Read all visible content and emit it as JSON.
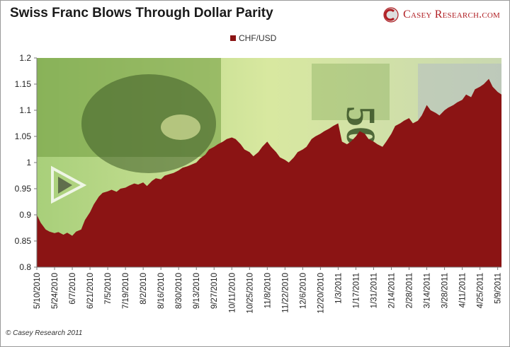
{
  "header": {
    "title": "Swiss Franc Blows Through Dollar Parity",
    "brand": "Casey Research.com"
  },
  "footer": {
    "copyright": "© Casey Research 2011"
  },
  "colors": {
    "area": "#8b1414",
    "brand": "#b01f24",
    "background_image_tint": "#c8e39a"
  },
  "chart_data": {
    "type": "area",
    "title": "Swiss Franc Blows Through Dollar Parity",
    "xlabel": "",
    "ylabel": "",
    "legend": {
      "position": "top",
      "entries": [
        "CHF/USD"
      ]
    },
    "grid": false,
    "ylim": [
      0.8,
      1.2
    ],
    "y_ticks": [
      "0.8",
      "0.85",
      "0.9",
      "0.95",
      "1",
      "1.05",
      "1.1",
      "1.15",
      "1.2"
    ],
    "x_ticks": [
      "5/10/2010",
      "5/24/2010",
      "6/7/2010",
      "6/21/2010",
      "7/5/2010",
      "7/19/2010",
      "8/2/2010",
      "8/16/2010",
      "8/30/2010",
      "9/13/2010",
      "9/27/2010",
      "10/11/2010",
      "10/25/2010",
      "11/8/2010",
      "11/22/2010",
      "12/6/2010",
      "12/20/2010",
      "1/3/2011",
      "1/17/2011",
      "1/31/2011",
      "2/14/2011",
      "2/28/2011",
      "3/14/2011",
      "3/28/2011",
      "4/11/2011",
      "4/25/2011",
      "5/9/2011"
    ],
    "series": [
      {
        "name": "CHF/USD",
        "x": [
          "5/10/2010",
          "5/13/2010",
          "5/17/2010",
          "5/20/2010",
          "5/24/2010",
          "5/27/2010",
          "5/31/2010",
          "6/3/2010",
          "6/7/2010",
          "6/10/2010",
          "6/14/2010",
          "6/17/2010",
          "6/21/2010",
          "6/24/2010",
          "6/28/2010",
          "7/1/2010",
          "7/5/2010",
          "7/8/2010",
          "7/12/2010",
          "7/15/2010",
          "7/19/2010",
          "7/22/2010",
          "7/26/2010",
          "7/29/2010",
          "8/2/2010",
          "8/5/2010",
          "8/9/2010",
          "8/12/2010",
          "8/16/2010",
          "8/19/2010",
          "8/23/2010",
          "8/26/2010",
          "8/30/2010",
          "9/2/2010",
          "9/6/2010",
          "9/9/2010",
          "9/13/2010",
          "9/16/2010",
          "9/20/2010",
          "9/23/2010",
          "9/27/2010",
          "9/30/2010",
          "10/4/2010",
          "10/7/2010",
          "10/11/2010",
          "10/14/2010",
          "10/18/2010",
          "10/21/2010",
          "10/25/2010",
          "10/28/2010",
          "11/1/2010",
          "11/4/2010",
          "11/8/2010",
          "11/11/2010",
          "11/15/2010",
          "11/18/2010",
          "11/22/2010",
          "11/25/2010",
          "11/29/2010",
          "12/2/2010",
          "12/6/2010",
          "12/9/2010",
          "12/13/2010",
          "12/16/2010",
          "12/20/2010",
          "12/23/2010",
          "12/27/2010",
          "12/30/2010",
          "1/3/2011",
          "1/6/2011",
          "1/10/2011",
          "1/13/2011",
          "1/17/2011",
          "1/20/2011",
          "1/24/2011",
          "1/27/2011",
          "1/31/2011",
          "2/3/2011",
          "2/7/2011",
          "2/10/2011",
          "2/14/2011",
          "2/17/2011",
          "2/21/2011",
          "2/24/2011",
          "2/28/2011",
          "3/3/2011",
          "3/7/2011",
          "3/10/2011",
          "3/14/2011",
          "3/17/2011",
          "3/21/2011",
          "3/24/2011",
          "3/28/2011",
          "3/31/2011",
          "4/4/2011",
          "4/7/2011",
          "4/11/2011",
          "4/14/2011",
          "4/18/2011",
          "4/21/2011",
          "4/25/2011",
          "4/28/2011",
          "5/2/2011",
          "5/5/2011",
          "5/9/2011",
          "5/12/2011"
        ],
        "values": [
          0.9,
          0.885,
          0.872,
          0.868,
          0.865,
          0.867,
          0.862,
          0.866,
          0.86,
          0.868,
          0.872,
          0.89,
          0.905,
          0.92,
          0.935,
          0.942,
          0.945,
          0.948,
          0.944,
          0.95,
          0.952,
          0.956,
          0.96,
          0.958,
          0.962,
          0.955,
          0.965,
          0.97,
          0.968,
          0.975,
          0.978,
          0.98,
          0.985,
          0.99,
          0.993,
          0.996,
          1.0,
          1.008,
          1.015,
          1.025,
          1.03,
          1.035,
          1.04,
          1.045,
          1.048,
          1.045,
          1.035,
          1.025,
          1.02,
          1.012,
          1.02,
          1.03,
          1.04,
          1.03,
          1.02,
          1.01,
          1.005,
          1.0,
          1.01,
          1.02,
          1.025,
          1.03,
          1.045,
          1.05,
          1.055,
          1.06,
          1.065,
          1.07,
          1.075,
          1.04,
          1.035,
          1.04,
          1.05,
          1.06,
          1.055,
          1.045,
          1.04,
          1.035,
          1.03,
          1.04,
          1.055,
          1.07,
          1.075,
          1.08,
          1.085,
          1.075,
          1.08,
          1.09,
          1.11,
          1.1,
          1.095,
          1.09,
          1.1,
          1.105,
          1.11,
          1.115,
          1.12,
          1.13,
          1.125,
          1.14,
          1.145,
          1.15,
          1.16,
          1.145,
          1.135,
          1.13
        ]
      }
    ]
  }
}
